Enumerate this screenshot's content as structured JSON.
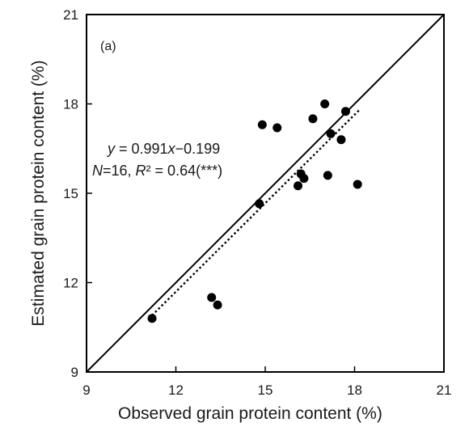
{
  "chart_data": {
    "type": "scatter",
    "panel_label": "(a)",
    "xlabel": "Observed grain protein content (%)",
    "ylabel": "Estimated grain protein content (%)",
    "xlim": [
      9,
      21
    ],
    "ylim": [
      9,
      21
    ],
    "xticks": [
      "9",
      "12",
      "15",
      "18",
      "21"
    ],
    "yticks": [
      "9",
      "12",
      "15",
      "18",
      "21"
    ],
    "grid": false,
    "equation_parts": {
      "y": "y",
      "eq": " = 0.991",
      "x": "x",
      "rest": "−0.199"
    },
    "stats_parts": {
      "n": "N",
      "rest1": "=16, ",
      "r": "R",
      "rest2": "² = 0.64(***)"
    },
    "points": [
      {
        "x": 11.2,
        "y": 10.8
      },
      {
        "x": 13.2,
        "y": 11.5
      },
      {
        "x": 13.4,
        "y": 11.25
      },
      {
        "x": 14.8,
        "y": 14.65
      },
      {
        "x": 14.9,
        "y": 17.3
      },
      {
        "x": 15.4,
        "y": 17.2
      },
      {
        "x": 16.1,
        "y": 15.25
      },
      {
        "x": 16.2,
        "y": 15.65
      },
      {
        "x": 16.3,
        "y": 15.5
      },
      {
        "x": 16.6,
        "y": 17.5
      },
      {
        "x": 17.0,
        "y": 18.0
      },
      {
        "x": 17.1,
        "y": 15.6
      },
      {
        "x": 17.2,
        "y": 17.0
      },
      {
        "x": 17.55,
        "y": 16.8
      },
      {
        "x": 17.7,
        "y": 17.75
      },
      {
        "x": 18.1,
        "y": 15.3
      }
    ],
    "identity_line": {
      "x": [
        9,
        21
      ],
      "y": [
        9,
        21
      ],
      "style": "solid"
    },
    "regression_line": {
      "slope": 0.991,
      "intercept": -0.199,
      "x_range": [
        11.2,
        18.2
      ],
      "style": "dotted"
    }
  }
}
